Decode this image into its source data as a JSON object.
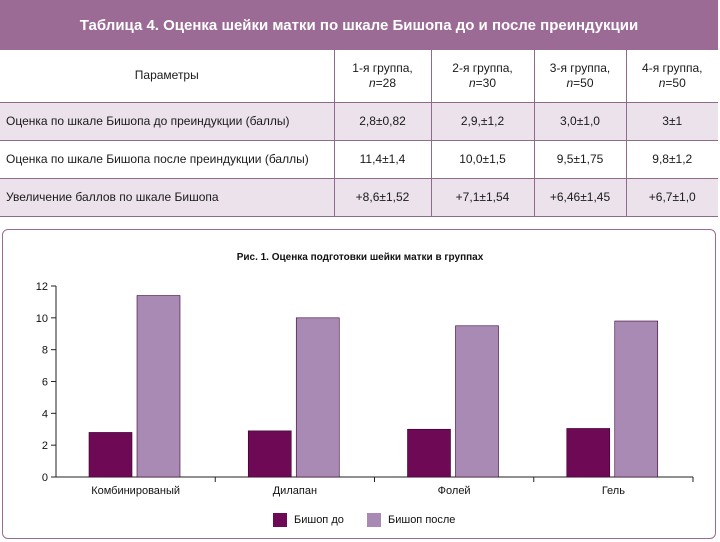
{
  "table": {
    "title": "Таблица 4. Оценка шейки матки по шкале Бишопа до и после преиндукции",
    "header": {
      "param": "Параметры",
      "groups": [
        {
          "label": "1-я группа,",
          "n_prefix": "n",
          "n_value": "=28"
        },
        {
          "label": "2-я группа,",
          "n_prefix": "n",
          "n_value": "=30"
        },
        {
          "label": "3-я группа,",
          "n_prefix": "n",
          "n_value": "=50"
        },
        {
          "label": "4-я группа,",
          "n_prefix": "n",
          "n_value": "=50"
        }
      ]
    },
    "rows": [
      {
        "param": "Оценка по шкале Бишопа до преиндукции (баллы)",
        "values": [
          "2,8±0,82",
          "2,9,±1,2",
          "3,0±1,0",
          "3±1"
        ]
      },
      {
        "param": "Оценка по шкале Бишопа после преиндукции (баллы)",
        "values": [
          "11,4±1,4",
          "10,0±1,5",
          "9,5±1,75",
          "9,8±1,2"
        ]
      },
      {
        "param": "Увеличение баллов по шкале Бишопа",
        "values": [
          "+8,6±1,52",
          "+7,1±1,54",
          "+6,46±1,45",
          "+6,7±1,0"
        ]
      }
    ]
  },
  "colors": {
    "title_bg": "#9b6b96",
    "row_shade": "#ece2ec",
    "series_before": "#6e0a55",
    "series_after": "#a98ab4"
  },
  "chart_data": {
    "type": "bar",
    "title": "Рис. 1. Оценка подготовки шейки матки в группах",
    "categories": [
      "Комбинированый",
      "Дилапан",
      "Фолей",
      "Гель"
    ],
    "series": [
      {
        "name": "Бишоп до",
        "values": [
          2.8,
          2.9,
          3.0,
          3.05
        ]
      },
      {
        "name": "Бишоп после",
        "values": [
          11.4,
          10.0,
          9.5,
          9.8
        ]
      }
    ],
    "yticks": [
      "0",
      "2",
      "4",
      "6",
      "8",
      "10",
      "12"
    ],
    "ylim": [
      0,
      12
    ],
    "xlabel": "",
    "ylabel": "",
    "legend": "bottom"
  }
}
